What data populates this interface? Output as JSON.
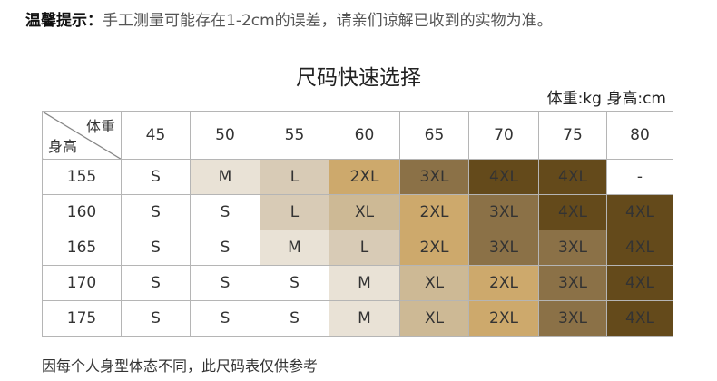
{
  "notice": {
    "label": "温馨提示：",
    "text": "手工测量可能存在1-2cm的误差，请亲们谅解已收到的实物为准。"
  },
  "title": "尺码快速选择",
  "units": "体重:kg  身高:cm",
  "table": {
    "corner_weight": "体重",
    "corner_height": "身高",
    "weights": [
      "45",
      "50",
      "55",
      "60",
      "65",
      "70",
      "75",
      "80"
    ],
    "rows": [
      {
        "height": "155",
        "sizes": [
          "S",
          "M",
          "L",
          "2XL",
          "3XL",
          "4XL",
          "4XL",
          "-"
        ]
      },
      {
        "height": "160",
        "sizes": [
          "S",
          "S",
          "L",
          "XL",
          "2XL",
          "3XL",
          "4XL",
          "4XL"
        ]
      },
      {
        "height": "165",
        "sizes": [
          "S",
          "S",
          "M",
          "L",
          "2XL",
          "3XL",
          "3XL",
          "4XL"
        ]
      },
      {
        "height": "170",
        "sizes": [
          "S",
          "S",
          "S",
          "M",
          "XL",
          "2XL",
          "3XL",
          "4XL"
        ]
      },
      {
        "height": "175",
        "sizes": [
          "S",
          "S",
          "S",
          "M",
          "XL",
          "2XL",
          "3XL",
          "4XL"
        ]
      }
    ]
  },
  "size_colors": {
    "S": "#ffffff",
    "-": "#ffffff",
    "M": "#e9e2d6",
    "L": "#d8cbb6",
    "XL": "#cdb995",
    "2XL": "#cda96c",
    "3XL": "#8b7147",
    "4XL": "#644a1b"
  },
  "footer": "因每个人身型体态不同，此尺码表仅供参考"
}
